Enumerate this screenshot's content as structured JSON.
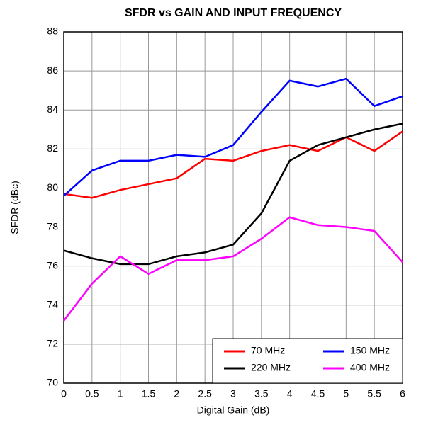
{
  "chart_data": {
    "type": "line",
    "title": "SFDR vs GAIN AND INPUT FREQUENCY",
    "xlabel": "Digital Gain (dB)",
    "ylabel": "SFDR (dBc)",
    "x": [
      0,
      0.5,
      1,
      1.5,
      2,
      2.5,
      3,
      3.5,
      4,
      4.5,
      5,
      5.5,
      6
    ],
    "series": [
      {
        "name": "70 MHz",
        "color": "#ff0000",
        "values": [
          79.7,
          79.5,
          79.9,
          80.2,
          80.5,
          81.5,
          81.4,
          81.9,
          82.2,
          81.9,
          82.6,
          81.9,
          82.9
        ]
      },
      {
        "name": "150 MHz",
        "color": "#0000ff",
        "values": [
          79.6,
          80.9,
          81.4,
          81.4,
          81.7,
          81.6,
          82.2,
          83.9,
          85.5,
          85.2,
          85.6,
          84.2,
          84.7
        ]
      },
      {
        "name": "220 MHz",
        "color": "#000000",
        "values": [
          76.8,
          76.4,
          76.1,
          76.1,
          76.5,
          76.7,
          77.1,
          78.7,
          81.4,
          82.2,
          82.6,
          83.0,
          83.3
        ]
      },
      {
        "name": "400 MHz",
        "color": "#ff00ff",
        "values": [
          73.2,
          75.1,
          76.5,
          75.6,
          76.3,
          76.3,
          76.5,
          77.4,
          78.5,
          78.1,
          78.0,
          77.8,
          76.2
        ]
      }
    ],
    "xlim": [
      0,
      6
    ],
    "xticks": [
      0,
      0.5,
      1,
      1.5,
      2,
      2.5,
      3,
      3.5,
      4,
      4.5,
      5,
      5.5,
      6
    ],
    "ylim": [
      70,
      88
    ],
    "yticks": [
      70,
      72,
      74,
      76,
      78,
      80,
      82,
      84,
      86,
      88
    ],
    "grid": true,
    "legend": "lower right"
  }
}
